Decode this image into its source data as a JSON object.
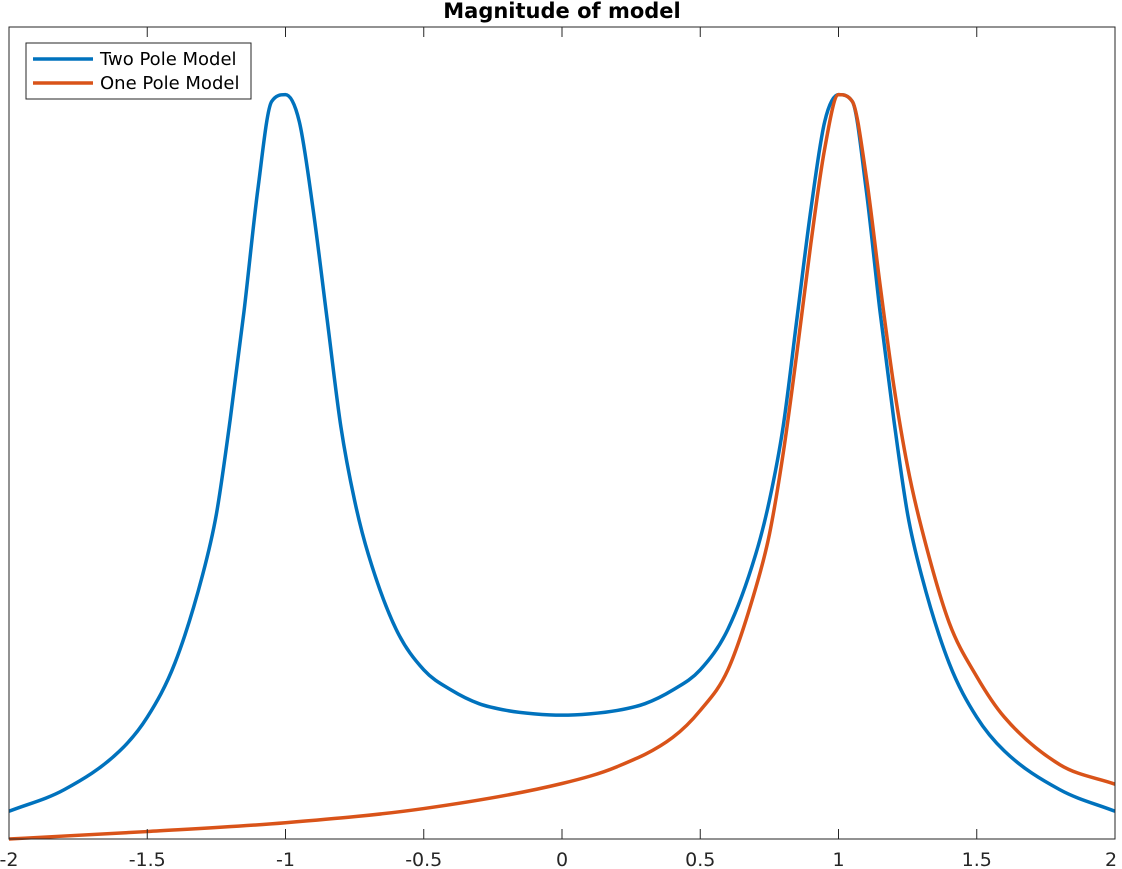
{
  "chart_data": {
    "type": "line",
    "title": "Magnitude of model",
    "xlabel": "",
    "ylabel": "",
    "xlim": [
      -2,
      2
    ],
    "ylim": [
      0,
      1.2
    ],
    "xticks": [
      -2,
      -1.5,
      -1,
      -0.5,
      0,
      0.5,
      1,
      1.5,
      2
    ],
    "xtick_labels": [
      "-2",
      "-1.5",
      "-1",
      "-0.5",
      "0",
      "0.5",
      "1",
      "1.5",
      "2"
    ],
    "yticks_visible": false,
    "grid": false,
    "legend": {
      "placement": "top-left",
      "boxed": true
    },
    "series": [
      {
        "name": "Two Pole Model",
        "color": "#0072BD",
        "x": [
          -2.0,
          -1.8,
          -1.6,
          -1.5,
          -1.4,
          -1.3,
          -1.25,
          -1.2,
          -1.15,
          -1.1,
          -1.05,
          -1.0,
          -0.95,
          -0.9,
          -0.85,
          -0.8,
          -0.75,
          -0.7,
          -0.6,
          -0.5,
          -0.4,
          -0.3,
          -0.2,
          -0.1,
          0.0,
          0.1,
          0.2,
          0.3,
          0.4,
          0.5,
          0.6,
          0.7,
          0.75,
          0.8,
          0.85,
          0.9,
          0.95,
          1.0,
          1.05,
          1.1,
          1.15,
          1.2,
          1.25,
          1.3,
          1.4,
          1.5,
          1.6,
          1.8,
          2.0
        ],
        "y": [
          0.041,
          0.073,
          0.13,
          0.18,
          0.26,
          0.39,
          0.48,
          0.62,
          0.78,
          0.96,
          1.09,
          1.1,
          1.06,
          0.93,
          0.77,
          0.61,
          0.5,
          0.42,
          0.31,
          0.25,
          0.22,
          0.2,
          0.19,
          0.185,
          0.183,
          0.185,
          0.19,
          0.2,
          0.22,
          0.25,
          0.31,
          0.42,
          0.5,
          0.61,
          0.77,
          0.93,
          1.06,
          1.1,
          1.09,
          0.96,
          0.78,
          0.62,
          0.48,
          0.39,
          0.26,
          0.18,
          0.13,
          0.073,
          0.041
        ]
      },
      {
        "name": "One Pole Model",
        "color": "#D95319",
        "x": [
          -2.0,
          -1.5,
          -1.0,
          -0.5,
          0.0,
          0.2,
          0.4,
          0.5,
          0.6,
          0.7,
          0.75,
          0.8,
          0.85,
          0.9,
          0.95,
          1.0,
          1.05,
          1.1,
          1.15,
          1.2,
          1.25,
          1.3,
          1.4,
          1.5,
          1.6,
          1.8,
          2.0
        ],
        "y": [
          0.0,
          0.011,
          0.024,
          0.045,
          0.082,
          0.107,
          0.15,
          0.19,
          0.25,
          0.37,
          0.45,
          0.57,
          0.72,
          0.88,
          1.02,
          1.1,
          1.09,
          0.98,
          0.82,
          0.67,
          0.55,
          0.46,
          0.32,
          0.24,
          0.18,
          0.11,
          0.081
        ]
      }
    ]
  }
}
